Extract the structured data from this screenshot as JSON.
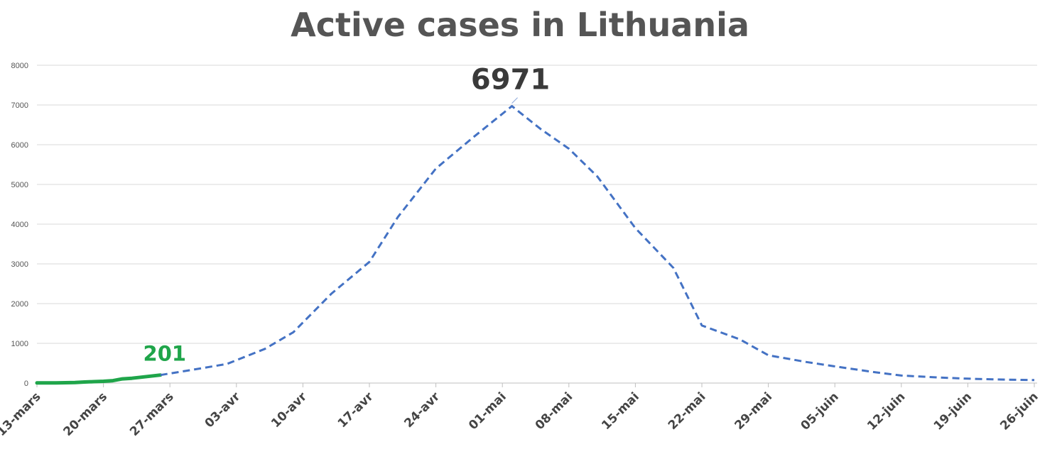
{
  "chart_data": {
    "type": "line",
    "title": "Active cases in Lithuania",
    "xlabel": "",
    "ylabel": "",
    "ylim": [
      0,
      8000
    ],
    "y_ticks": [
      0,
      1000,
      2000,
      3000,
      4000,
      5000,
      6000,
      7000,
      8000
    ],
    "x_tick_labels": [
      "13-mars",
      "20-mars",
      "27-mars",
      "03-avr",
      "10-avr",
      "17-avr",
      "24-avr",
      "01-mai",
      "08-mai",
      "15-mai",
      "22-mai",
      "29-mai",
      "05-juin",
      "12-juin",
      "19-juin",
      "26-juin"
    ],
    "x_start": "13-mars",
    "x_end": "26-juin",
    "grid": true,
    "series": [
      {
        "style": "solid",
        "color": "#1fa54a",
        "x": [
          "13-mars",
          "14-mars",
          "15-mars",
          "16-mars",
          "17-mars",
          "18-mars",
          "19-mars",
          "20-mars",
          "21-mars",
          "22-mars",
          "23-mars",
          "24-mars",
          "25-mars",
          "26-mars"
        ],
        "values": [
          3,
          4,
          6,
          9,
          14,
          26,
          36,
          45,
          60,
          105,
          122,
          148,
          175,
          201
        ],
        "end_label": "201"
      },
      {
        "style": "dashed",
        "color": "#4472c4",
        "x": [
          "26-mars",
          "29-mars",
          "02-avr",
          "06-avr",
          "09-avr",
          "13-avr",
          "17-avr",
          "20-avr",
          "24-avr",
          "28-avr",
          "02-mai",
          "05-mai",
          "08-mai",
          "11-mai",
          "15-mai",
          "19-mai",
          "22-mai",
          "26-mai",
          "29-mai",
          "02-juin",
          "05-juin",
          "09-juin",
          "12-juin",
          "16-juin",
          "19-juin",
          "23-juin",
          "26-juin"
        ],
        "values": [
          201,
          320,
          480,
          860,
          1280,
          2250,
          3050,
          4180,
          5400,
          6200,
          6971,
          6400,
          5900,
          5200,
          3900,
          2900,
          1450,
          1100,
          700,
          530,
          420,
          280,
          190,
          140,
          110,
          85,
          75
        ],
        "peak_label": "6971"
      }
    ]
  }
}
